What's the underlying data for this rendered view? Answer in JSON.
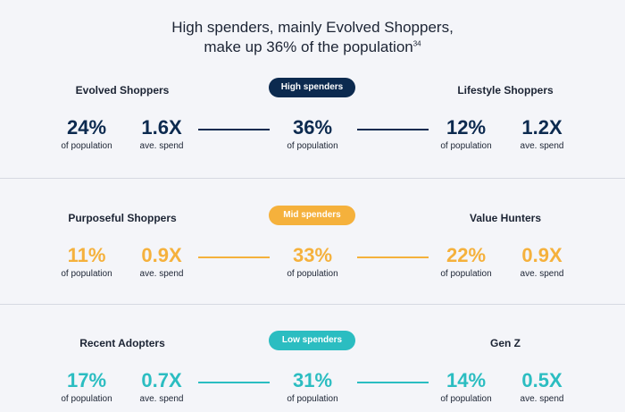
{
  "title": {
    "line1": "High spenders, mainly Evolved Shoppers,",
    "line2": "make up 36% of the population",
    "footnote": "34"
  },
  "tiers": [
    {
      "label": "High spenders",
      "color": "#0c2a4f",
      "left": {
        "name": "Evolved Shoppers",
        "population": "24%",
        "spend": "1.6X"
      },
      "center": {
        "population": "36%"
      },
      "right": {
        "name": "Lifestyle Shoppers",
        "population": "12%",
        "spend": "1.2X"
      }
    },
    {
      "label": "Mid spenders",
      "color": "#f5b13c",
      "left": {
        "name": "Purposeful Shoppers",
        "population": "11%",
        "spend": "0.9X"
      },
      "center": {
        "population": "33%"
      },
      "right": {
        "name": "Value Hunters",
        "population": "22%",
        "spend": "0.9X"
      }
    },
    {
      "label": "Low spenders",
      "color": "#2bbdc1",
      "left": {
        "name": "Recent Adopters",
        "population": "17%",
        "spend": "0.7X"
      },
      "center": {
        "population": "31%"
      },
      "right": {
        "name": "Gen Z",
        "population": "14%",
        "spend": "0.5X"
      }
    }
  ],
  "labels": {
    "population": "of population",
    "spend": "ave. spend"
  }
}
